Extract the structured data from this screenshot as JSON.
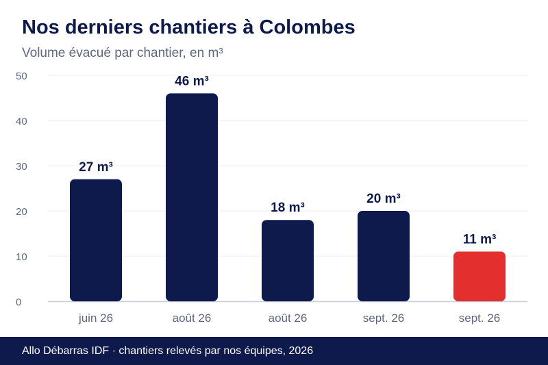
{
  "header": {
    "title": "Nos derniers chantiers à Colombes",
    "subtitle": "Volume évacué par chantier, en m³"
  },
  "footer": {
    "text": "Allo Débarras IDF · chantiers relevés par nos équipes, 2026"
  },
  "colors": {
    "bar": "#0e1a4b",
    "highlight": "#e3302f",
    "grid": "#ececf2",
    "axis": "#c8c9d8",
    "tick_text": "#5d6682",
    "label_text": "#0e1a4b"
  },
  "chart_data": {
    "type": "bar",
    "categories": [
      "juin 26",
      "août 26",
      "août 26",
      "sept. 26",
      "sept. 26"
    ],
    "values": [
      27,
      46,
      18,
      20,
      11
    ],
    "data_labels": [
      "27 m³",
      "46 m³",
      "18 m³",
      "20 m³",
      "11 m³"
    ],
    "highlight_index": 4,
    "ylim": [
      0,
      50
    ],
    "yticks": [
      0,
      10,
      20,
      30,
      40,
      50
    ],
    "grid": true,
    "xlabel": "",
    "ylabel": ""
  }
}
